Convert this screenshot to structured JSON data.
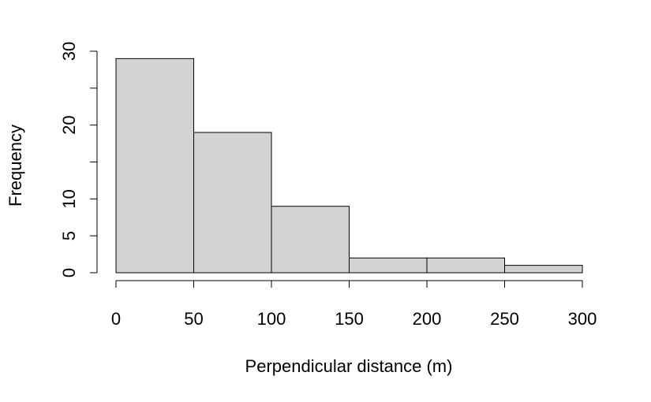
{
  "chart_data": {
    "type": "bar",
    "subtype": "histogram",
    "title": "",
    "xlabel": "Perpendicular distance (m)",
    "ylabel": "Frequency",
    "bins": [
      {
        "x0": 0,
        "x1": 50,
        "count": 29
      },
      {
        "x0": 50,
        "x1": 100,
        "count": 19
      },
      {
        "x0": 100,
        "x1": 150,
        "count": 9
      },
      {
        "x0": 150,
        "x1": 200,
        "count": 2
      },
      {
        "x0": 200,
        "x1": 250,
        "count": 2
      },
      {
        "x0": 250,
        "x1": 300,
        "count": 1
      }
    ],
    "xlim": [
      0,
      300
    ],
    "ylim": [
      0,
      30
    ],
    "x_ticks": [
      0,
      50,
      100,
      150,
      200,
      250,
      300
    ],
    "x_tick_labels": [
      "0",
      "50",
      "100",
      "150",
      "200",
      "250",
      "300"
    ],
    "y_ticks": [
      0,
      5,
      10,
      15,
      20,
      25,
      30
    ],
    "y_tick_labels": [
      "0",
      "5",
      "10",
      "",
      "20",
      "",
      "30"
    ],
    "grid": false,
    "legend": "none",
    "colors": {
      "bar_fill": "#d3d3d3",
      "bar_stroke": "#000000"
    }
  }
}
